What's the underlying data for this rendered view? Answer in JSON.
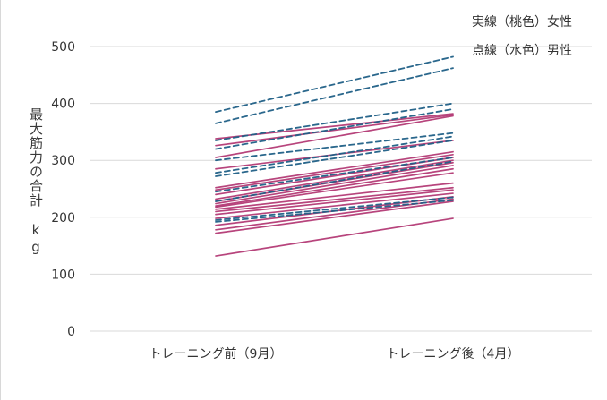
{
  "chart_data": {
    "type": "line",
    "categories": [
      "トレーニング前（9月）",
      "トレーニング後（4月）"
    ],
    "ylabel": "最大筋力の合計　kg",
    "yticks": [
      0,
      100,
      200,
      300,
      400,
      500
    ],
    "ylim": [
      0,
      500
    ],
    "grid": "horizontal",
    "legend": {
      "placement": "top-right",
      "entries": [
        "実線（桃色）女性",
        "点線（水色）男性"
      ]
    },
    "colors": {
      "female": "#b0306e",
      "male": "#1f5f86"
    },
    "series": [
      {
        "group": "female",
        "style": "solid",
        "values": [
          338,
          382
        ]
      },
      {
        "group": "female",
        "style": "solid",
        "values": [
          326,
          380
        ]
      },
      {
        "group": "female",
        "style": "solid",
        "values": [
          305,
          378
        ]
      },
      {
        "group": "female",
        "style": "solid",
        "values": [
          285,
          335
        ]
      },
      {
        "group": "female",
        "style": "solid",
        "values": [
          252,
          315
        ]
      },
      {
        "group": "female",
        "style": "solid",
        "values": [
          248,
          310
        ]
      },
      {
        "group": "female",
        "style": "solid",
        "values": [
          240,
          305
        ]
      },
      {
        "group": "female",
        "style": "solid",
        "values": [
          232,
          300
        ]
      },
      {
        "group": "female",
        "style": "solid",
        "values": [
          228,
          296
        ]
      },
      {
        "group": "female",
        "style": "solid",
        "values": [
          224,
          291
        ]
      },
      {
        "group": "female",
        "style": "solid",
        "values": [
          220,
          285
        ]
      },
      {
        "group": "female",
        "style": "solid",
        "values": [
          218,
          278
        ]
      },
      {
        "group": "female",
        "style": "solid",
        "values": [
          214,
          260
        ]
      },
      {
        "group": "female",
        "style": "solid",
        "values": [
          210,
          252
        ]
      },
      {
        "group": "female",
        "style": "solid",
        "values": [
          205,
          248
        ]
      },
      {
        "group": "female",
        "style": "solid",
        "values": [
          198,
          242
        ]
      },
      {
        "group": "female",
        "style": "solid",
        "values": [
          186,
          236
        ]
      },
      {
        "group": "female",
        "style": "solid",
        "values": [
          178,
          232
        ]
      },
      {
        "group": "female",
        "style": "solid",
        "values": [
          172,
          228
        ]
      },
      {
        "group": "female",
        "style": "solid",
        "values": [
          132,
          198
        ]
      },
      {
        "group": "male",
        "style": "dashed",
        "values": [
          385,
          482
        ]
      },
      {
        "group": "male",
        "style": "dashed",
        "values": [
          365,
          462
        ]
      },
      {
        "group": "male",
        "style": "dashed",
        "values": [
          335,
          400
        ]
      },
      {
        "group": "male",
        "style": "dashed",
        "values": [
          320,
          390
        ]
      },
      {
        "group": "male",
        "style": "dashed",
        "values": [
          300,
          348
        ]
      },
      {
        "group": "male",
        "style": "dashed",
        "values": [
          278,
          342
        ]
      },
      {
        "group": "male",
        "style": "dashed",
        "values": [
          272,
          335
        ]
      },
      {
        "group": "male",
        "style": "dashed",
        "values": [
          245,
          305
        ]
      },
      {
        "group": "male",
        "style": "dashed",
        "values": [
          228,
          298
        ]
      },
      {
        "group": "male",
        "style": "dashed",
        "values": [
          195,
          235
        ]
      },
      {
        "group": "male",
        "style": "dashed",
        "values": [
          192,
          230
        ]
      }
    ]
  }
}
